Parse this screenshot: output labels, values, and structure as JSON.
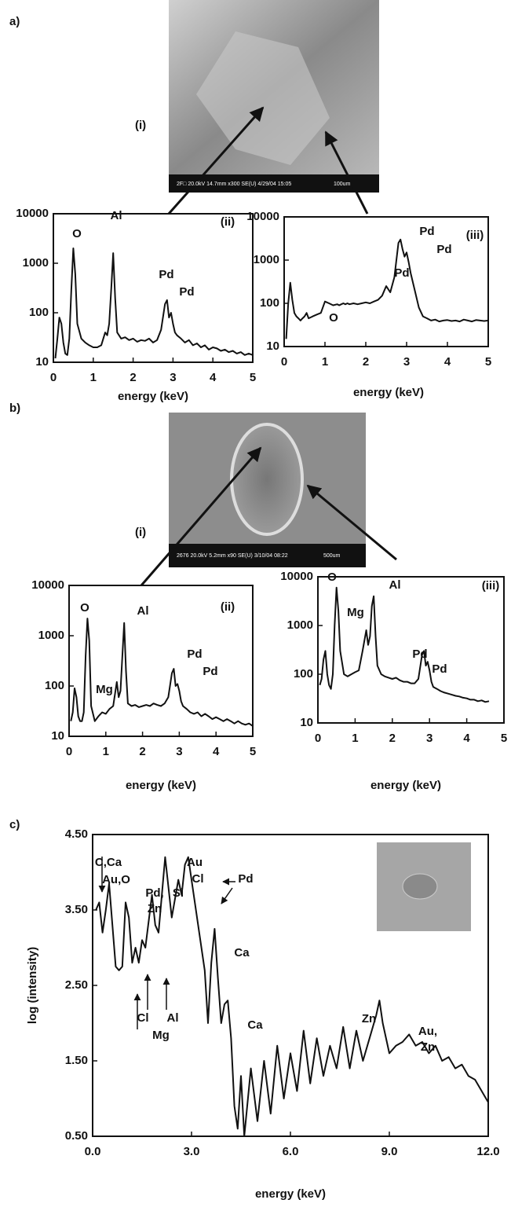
{
  "panel_labels": [
    "a)",
    "b)",
    "c)"
  ],
  "micrographs": [
    {
      "label": "(i)",
      "info": "2F□ 20.0kV 14.7mm x300 SE(U) 4/29/04 15:05",
      "scale": "100um"
    },
    {
      "label": "(i)",
      "info": "2676 20.0kV 5.2mm x90 SE(U) 3/10/04 08:22",
      "scale": "500um"
    }
  ],
  "chart_data": [
    {
      "type": "line",
      "log_y": true,
      "color": "#111111",
      "xlabel": "energy (keV)",
      "x": [
        0.05,
        0.1,
        0.15,
        0.2,
        0.25,
        0.3,
        0.35,
        0.4,
        0.45,
        0.5,
        0.55,
        0.6,
        0.7,
        0.8,
        0.9,
        1.0,
        1.1,
        1.2,
        1.3,
        1.35,
        1.4,
        1.45,
        1.5,
        1.55,
        1.6,
        1.7,
        1.8,
        1.9,
        2.0,
        2.1,
        2.2,
        2.3,
        2.4,
        2.5,
        2.6,
        2.7,
        2.8,
        2.85,
        2.9,
        2.95,
        3.0,
        3.05,
        3.1,
        3.2,
        3.3,
        3.4,
        3.5,
        3.6,
        3.7,
        3.8,
        3.9,
        4.0,
        4.1,
        4.2,
        4.3,
        4.4,
        4.5,
        4.6,
        4.7,
        4.8,
        4.9,
        5.0
      ],
      "values": [
        12,
        30,
        80,
        60,
        25,
        15,
        14,
        30,
        300,
        2000,
        600,
        60,
        30,
        25,
        22,
        20,
        20,
        22,
        40,
        35,
        60,
        300,
        1600,
        200,
        40,
        30,
        32,
        28,
        30,
        26,
        28,
        27,
        30,
        25,
        28,
        45,
        150,
        180,
        80,
        100,
        60,
        40,
        35,
        30,
        25,
        28,
        22,
        24,
        20,
        22,
        18,
        20,
        19,
        17,
        18,
        16,
        17,
        15,
        16,
        14,
        15,
        14
      ],
      "xlim": [
        0,
        5
      ],
      "ylim": [
        10,
        10000
      ],
      "xticks": [
        0,
        1,
        2,
        3,
        4,
        5
      ],
      "yticks": [
        10,
        100,
        1000,
        10000
      ],
      "annotations": [
        "O",
        "Al",
        "Pd",
        "Pd",
        "(ii)"
      ]
    },
    {
      "type": "line",
      "log_y": true,
      "color": "#111111",
      "xlabel": "energy (keV)",
      "x": [
        0.05,
        0.1,
        0.15,
        0.2,
        0.25,
        0.3,
        0.35,
        0.4,
        0.45,
        0.5,
        0.55,
        0.6,
        0.7,
        0.8,
        0.9,
        1.0,
        1.1,
        1.2,
        1.3,
        1.35,
        1.4,
        1.45,
        1.5,
        1.55,
        1.6,
        1.7,
        1.8,
        1.9,
        2.0,
        2.1,
        2.2,
        2.3,
        2.4,
        2.5,
        2.6,
        2.7,
        2.8,
        2.85,
        2.9,
        2.95,
        3.0,
        3.05,
        3.1,
        3.2,
        3.3,
        3.4,
        3.5,
        3.6,
        3.7,
        3.8,
        3.9,
        4.0,
        4.1,
        4.2,
        4.3,
        4.4,
        4.5,
        4.6,
        4.7,
        4.8,
        4.9,
        5.0
      ],
      "values": [
        15,
        100,
        300,
        120,
        60,
        50,
        45,
        40,
        45,
        50,
        60,
        45,
        50,
        55,
        60,
        110,
        100,
        90,
        95,
        90,
        95,
        100,
        95,
        100,
        95,
        100,
        95,
        100,
        105,
        100,
        110,
        120,
        150,
        250,
        180,
        400,
        2500,
        3000,
        1800,
        1200,
        1500,
        900,
        500,
        200,
        80,
        50,
        45,
        40,
        42,
        38,
        40,
        41,
        39,
        40,
        38,
        42,
        40,
        38,
        41,
        40,
        39,
        40
      ],
      "xlim": [
        0,
        5
      ],
      "ylim": [
        10,
        10000
      ],
      "xticks": [
        0,
        1,
        2,
        3,
        4,
        5
      ],
      "yticks": [
        10,
        100,
        1000,
        10000
      ],
      "annotations": [
        "O",
        "Pd",
        "Pd",
        "Pd",
        "(iii)"
      ]
    },
    {
      "type": "line",
      "log_y": true,
      "color": "#111111",
      "xlabel": "energy (keV)",
      "x": [
        0.05,
        0.1,
        0.15,
        0.2,
        0.25,
        0.3,
        0.35,
        0.4,
        0.45,
        0.5,
        0.55,
        0.6,
        0.7,
        0.8,
        0.9,
        1.0,
        1.1,
        1.2,
        1.3,
        1.35,
        1.4,
        1.45,
        1.5,
        1.55,
        1.6,
        1.7,
        1.8,
        1.9,
        2.0,
        2.1,
        2.2,
        2.3,
        2.4,
        2.5,
        2.6,
        2.7,
        2.8,
        2.85,
        2.9,
        2.95,
        3.0,
        3.05,
        3.1,
        3.2,
        3.3,
        3.4,
        3.5,
        3.6,
        3.7,
        3.8,
        3.9,
        4.0,
        4.1,
        4.2,
        4.3,
        4.4,
        4.5,
        4.6,
        4.7,
        4.8,
        4.9,
        5.0
      ],
      "values": [
        20,
        30,
        90,
        60,
        25,
        20,
        20,
        30,
        400,
        2200,
        800,
        40,
        20,
        25,
        30,
        28,
        35,
        40,
        120,
        60,
        80,
        400,
        1800,
        200,
        45,
        40,
        42,
        38,
        40,
        42,
        40,
        45,
        42,
        40,
        45,
        60,
        180,
        220,
        100,
        110,
        80,
        50,
        40,
        35,
        30,
        28,
        30,
        25,
        28,
        25,
        22,
        24,
        22,
        20,
        22,
        20,
        18,
        20,
        18,
        17,
        18,
        16
      ],
      "xlim": [
        0,
        5
      ],
      "ylim": [
        10,
        10000
      ],
      "xticks": [
        0,
        1,
        2,
        3,
        4,
        5
      ],
      "yticks": [
        10,
        100,
        1000,
        10000
      ],
      "annotations": [
        "O",
        "Mg",
        "Al",
        "Pd",
        "Pd",
        "(ii)"
      ]
    },
    {
      "type": "line",
      "log_y": true,
      "color": "#111111",
      "xlabel": "energy (keV)",
      "x": [
        0.05,
        0.1,
        0.15,
        0.2,
        0.25,
        0.3,
        0.35,
        0.4,
        0.45,
        0.5,
        0.55,
        0.6,
        0.7,
        0.8,
        0.9,
        1.0,
        1.1,
        1.2,
        1.3,
        1.35,
        1.4,
        1.45,
        1.5,
        1.55,
        1.6,
        1.7,
        1.8,
        1.9,
        2.0,
        2.1,
        2.2,
        2.3,
        2.4,
        2.5,
        2.6,
        2.7,
        2.8,
        2.85,
        2.9,
        2.95,
        3.0,
        3.05,
        3.1,
        3.2,
        3.3,
        3.4,
        3.5,
        3.6,
        3.7,
        3.8,
        3.9,
        4.0,
        4.1,
        4.2,
        4.3,
        4.4,
        4.5,
        4.6,
        4.7,
        4.8,
        4.9,
        5.0
      ],
      "values": [
        60,
        80,
        200,
        300,
        100,
        60,
        50,
        100,
        1000,
        6000,
        2000,
        300,
        100,
        90,
        100,
        110,
        120,
        300,
        800,
        400,
        600,
        2500,
        4000,
        600,
        150,
        100,
        90,
        85,
        80,
        85,
        75,
        70,
        70,
        65,
        65,
        80,
        250,
        300,
        150,
        180,
        120,
        70,
        55,
        50,
        45,
        42,
        40,
        38,
        36,
        35,
        33,
        32,
        30,
        30,
        28,
        29,
        27,
        28,
        null,
        null,
        null,
        null
      ],
      "xlim": [
        0,
        5
      ],
      "ylim": [
        10,
        10000
      ],
      "xticks": [
        0,
        1,
        2,
        3,
        4,
        5
      ],
      "yticks": [
        10,
        100,
        1000,
        10000
      ],
      "annotations": [
        "O",
        "Mg",
        "Al",
        "Pd",
        "Pd",
        "(iii)"
      ]
    },
    {
      "type": "line",
      "log_y": false,
      "color": "#111111",
      "xlabel": "energy (keV)",
      "ylabel": "log (intensity)",
      "x": [
        0.1,
        0.2,
        0.3,
        0.4,
        0.5,
        0.6,
        0.7,
        0.8,
        0.9,
        1.0,
        1.1,
        1.2,
        1.3,
        1.4,
        1.5,
        1.6,
        1.8,
        1.9,
        2.0,
        2.2,
        2.3,
        2.4,
        2.6,
        2.7,
        2.8,
        2.9,
        3.0,
        3.2,
        3.4,
        3.5,
        3.6,
        3.7,
        3.8,
        3.9,
        4.0,
        4.1,
        4.2,
        4.3,
        4.4,
        4.5,
        4.6,
        4.8,
        5.0,
        5.2,
        5.4,
        5.6,
        5.8,
        6.0,
        6.2,
        6.4,
        6.6,
        6.8,
        7.0,
        7.2,
        7.4,
        7.6,
        7.8,
        8.0,
        8.2,
        8.4,
        8.6,
        8.7,
        8.8,
        9.0,
        9.2,
        9.4,
        9.6,
        9.8,
        10.0,
        10.2,
        10.4,
        10.6,
        10.8,
        11.0,
        11.2,
        11.4,
        11.6,
        11.8,
        12.0
      ],
      "values": [
        3.5,
        3.6,
        3.2,
        3.5,
        3.85,
        3.3,
        2.75,
        2.7,
        2.75,
        3.6,
        3.4,
        2.8,
        3.0,
        2.8,
        3.1,
        3.0,
        3.7,
        3.3,
        3.2,
        4.2,
        3.8,
        3.4,
        3.9,
        3.7,
        4.1,
        4.2,
        3.9,
        3.3,
        2.7,
        2.0,
        2.8,
        3.25,
        2.6,
        2.0,
        2.25,
        2.3,
        1.8,
        0.9,
        0.6,
        1.3,
        0.5,
        1.4,
        0.7,
        1.5,
        0.8,
        1.7,
        1.0,
        1.6,
        1.1,
        1.9,
        1.2,
        1.8,
        1.3,
        1.7,
        1.4,
        1.95,
        1.4,
        1.9,
        1.5,
        1.8,
        2.1,
        2.3,
        2.0,
        1.6,
        1.7,
        1.75,
        1.85,
        1.7,
        1.75,
        1.6,
        1.7,
        1.5,
        1.55,
        1.4,
        1.45,
        1.3,
        1.25,
        1.1,
        0.95
      ],
      "xlim": [
        0,
        12
      ],
      "ylim": [
        0.5,
        4.5
      ],
      "xticks": [
        {
          "value": 0,
          "label": "0.0"
        },
        {
          "value": 3,
          "label": "3.0"
        },
        {
          "value": 6,
          "label": "6.0"
        },
        {
          "value": 9,
          "label": "9.0"
        },
        {
          "value": 12,
          "label": "12.0"
        }
      ],
      "yticks": [
        {
          "value": 0.5,
          "label": "0.50"
        },
        {
          "value": 1.5,
          "label": "1.50"
        },
        {
          "value": 2.5,
          "label": "2.50"
        },
        {
          "value": 3.5,
          "label": "3.50"
        },
        {
          "value": 4.5,
          "label": "4.50"
        }
      ],
      "annotations": [
        "C,Ca",
        "Au,O",
        "Pd,",
        "Zn",
        "Si",
        "Au",
        "Cl",
        "Pd",
        "Ca",
        "Ca",
        "Cl",
        "Mg",
        "Al",
        "Zn",
        "Au,",
        "Zn"
      ]
    }
  ]
}
